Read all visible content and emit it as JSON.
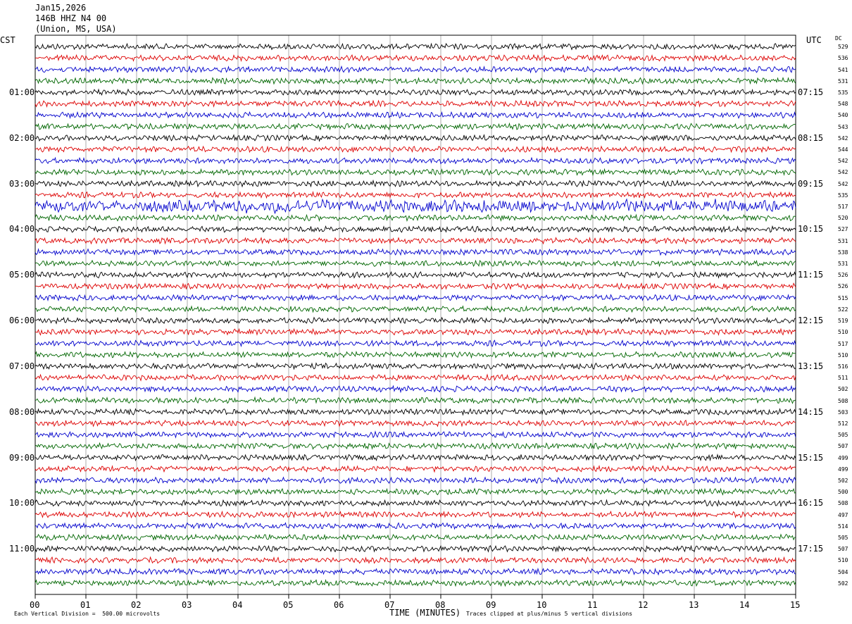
{
  "header": {
    "date": "Jan15,2026",
    "station": "146B HHZ N4 00",
    "location": "(Union, MS, USA)"
  },
  "left_tz": "CST",
  "right_tz": "UTC",
  "dc_header": "DC",
  "footer": {
    "vertical_division": "Each Vertical Division =  500.00 microvolts",
    "clip_note": "Traces clipped at plus/minus 5 vertical divisions"
  },
  "colors": {
    "trace_cycle": [
      "#000000",
      "#dd0000",
      "#0000cc",
      "#006600"
    ],
    "grid": "#000000"
  },
  "chart_data": {
    "type": "line",
    "title": "",
    "xlabel": "TIME (MINUTES)",
    "ylabel": "",
    "xlim": [
      0,
      15
    ],
    "x_ticks": [
      "00",
      "01",
      "02",
      "03",
      "04",
      "05",
      "06",
      "07",
      "08",
      "09",
      "10",
      "11",
      "12",
      "13",
      "14",
      "15"
    ],
    "left_hour_labels": [
      "01:00",
      "02:00",
      "03:00",
      "04:00",
      "05:00",
      "06:00",
      "07:00",
      "08:00",
      "09:00",
      "10:00",
      "11:00"
    ],
    "right_hour_labels": [
      "07:15",
      "08:15",
      "09:15",
      "10:15",
      "11:15",
      "12:15",
      "13:15",
      "14:15",
      "15:15",
      "16:15",
      "17:15"
    ],
    "trace_interval_minutes": 15,
    "dc_offsets": [
      529,
      536,
      541,
      531,
      535,
      548,
      540,
      543,
      542,
      544,
      542,
      542,
      542,
      535,
      517,
      520,
      527,
      531,
      538,
      531,
      526,
      526,
      515,
      522,
      519,
      510,
      517,
      510,
      516,
      511,
      502,
      508,
      503,
      512,
      505,
      507,
      499,
      499,
      502,
      500,
      508,
      497,
      514,
      505,
      507,
      510,
      504,
      502
    ]
  }
}
